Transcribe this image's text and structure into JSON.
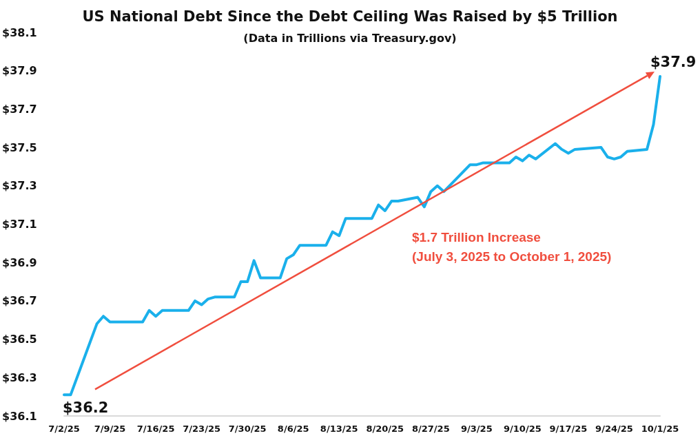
{
  "chart_data": {
    "type": "line",
    "title": "US National Debt Since the Debt Ceiling Was Raised by $5 Trillion",
    "subtitle": "(Data in Trillions via Treasury.gov)",
    "series": [
      {
        "color": "#1ab0eb",
        "x": [
          "2025-07-02",
          "2025-07-03",
          "2025-07-07",
          "2025-07-08",
          "2025-07-09",
          "2025-07-10",
          "2025-07-14",
          "2025-07-15",
          "2025-07-16",
          "2025-07-17",
          "2025-07-21",
          "2025-07-22",
          "2025-07-23",
          "2025-07-24",
          "2025-07-25",
          "2025-07-28",
          "2025-07-29",
          "2025-07-30",
          "2025-07-31",
          "2025-08-01",
          "2025-08-04",
          "2025-08-05",
          "2025-08-06",
          "2025-08-07",
          "2025-08-11",
          "2025-08-12",
          "2025-08-13",
          "2025-08-14",
          "2025-08-18",
          "2025-08-19",
          "2025-08-20",
          "2025-08-21",
          "2025-08-22",
          "2025-08-25",
          "2025-08-26",
          "2025-08-27",
          "2025-08-28",
          "2025-08-29",
          "2025-09-02",
          "2025-09-03",
          "2025-09-04",
          "2025-09-08",
          "2025-09-09",
          "2025-09-10",
          "2025-09-11",
          "2025-09-12",
          "2025-09-15",
          "2025-09-16",
          "2025-09-17",
          "2025-09-18",
          "2025-09-22",
          "2025-09-23",
          "2025-09-24",
          "2025-09-25",
          "2025-09-26",
          "2025-09-29",
          "2025-09-30",
          "2025-10-01"
        ],
        "values": [
          36.21,
          36.21,
          36.58,
          36.62,
          36.59,
          36.59,
          36.59,
          36.65,
          36.62,
          36.65,
          36.65,
          36.7,
          36.68,
          36.71,
          36.72,
          36.72,
          36.8,
          36.8,
          36.91,
          36.82,
          36.82,
          36.92,
          36.94,
          36.99,
          36.99,
          37.06,
          37.04,
          37.13,
          37.13,
          37.2,
          37.17,
          37.22,
          37.22,
          37.24,
          37.19,
          37.27,
          37.3,
          37.27,
          37.41,
          37.41,
          37.42,
          37.42,
          37.45,
          37.43,
          37.46,
          37.44,
          37.52,
          37.49,
          37.47,
          37.49,
          37.5,
          37.45,
          37.44,
          37.45,
          37.48,
          37.49,
          37.62,
          37.87
        ]
      }
    ],
    "xlim": [
      "2025-07-02",
      "2025-10-01"
    ],
    "xticks": [
      {
        "value": "2025-07-02",
        "label": "7/2/25"
      },
      {
        "value": "2025-07-09",
        "label": "7/9/25"
      },
      {
        "value": "2025-07-16",
        "label": "7/16/25"
      },
      {
        "value": "2025-07-23",
        "label": "7/23/25"
      },
      {
        "value": "2025-07-30",
        "label": "7/30/25"
      },
      {
        "value": "2025-08-06",
        "label": "8/6/25"
      },
      {
        "value": "2025-08-13",
        "label": "8/13/25"
      },
      {
        "value": "2025-08-20",
        "label": "8/20/25"
      },
      {
        "value": "2025-08-27",
        "label": "8/27/25"
      },
      {
        "value": "2025-09-03",
        "label": "9/3/25"
      },
      {
        "value": "2025-09-10",
        "label": "9/10/25"
      },
      {
        "value": "2025-09-17",
        "label": "9/17/25"
      },
      {
        "value": "2025-09-24",
        "label": "9/24/25"
      },
      {
        "value": "2025-10-01",
        "label": "10/1/25"
      }
    ],
    "ylim": [
      36.1,
      38.1
    ],
    "yticks": [
      {
        "value": 36.1,
        "label": "$36.1"
      },
      {
        "value": 36.3,
        "label": "$36.3"
      },
      {
        "value": 36.5,
        "label": "$36.5"
      },
      {
        "value": 36.7,
        "label": "$36.7"
      },
      {
        "value": 36.9,
        "label": "$36.9"
      },
      {
        "value": 37.1,
        "label": "$37.1"
      },
      {
        "value": 37.3,
        "label": "$37.3"
      },
      {
        "value": 37.5,
        "label": "$37.5"
      },
      {
        "value": 37.7,
        "label": "$37.7"
      },
      {
        "value": 37.9,
        "label": "$37.9"
      },
      {
        "value": 38.1,
        "label": "$38.1"
      }
    ],
    "annotations": [
      {
        "text": "$36.2",
        "x": "2025-07-02",
        "y": 36.21
      },
      {
        "text": "$37.9",
        "x": "2025-10-01",
        "y": 37.87
      },
      "$1.7 Trillion Increase\n(July 3, 2025 to October 1, 2025)"
    ],
    "grid": false,
    "marker": "none",
    "line_style": "solid"
  }
}
